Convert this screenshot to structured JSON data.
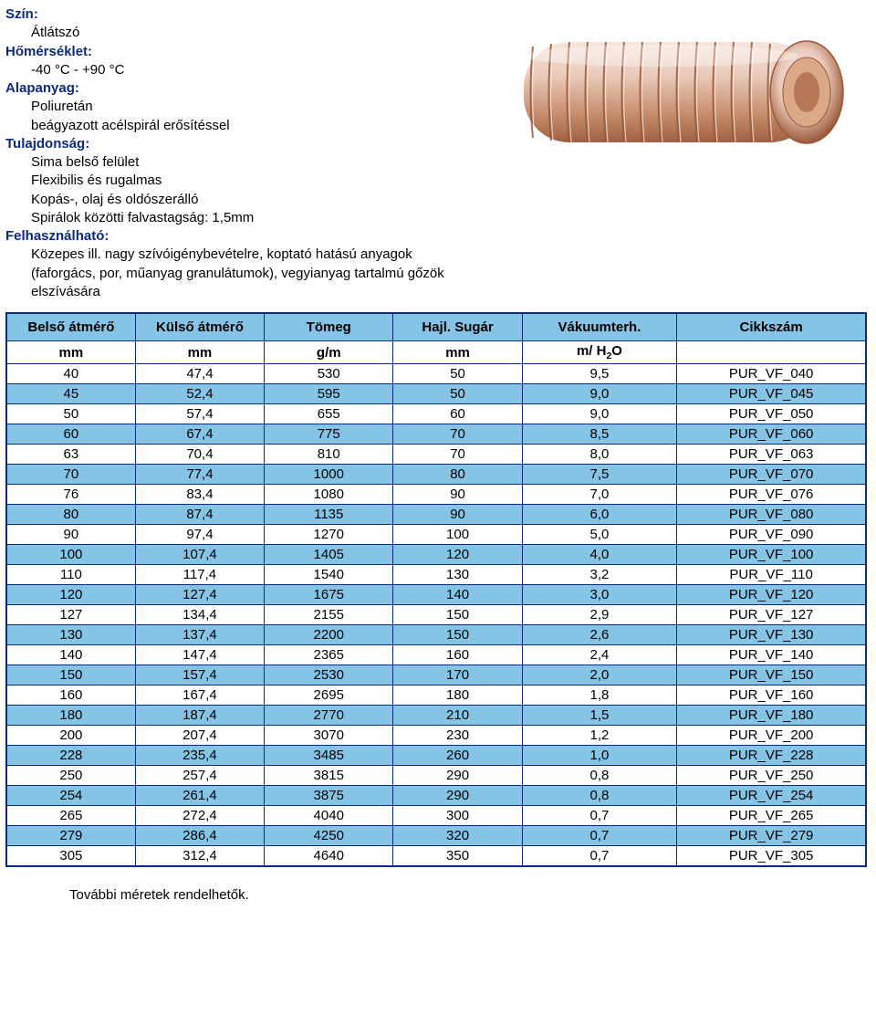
{
  "specs": {
    "color_label": "Szín:",
    "color_value": "Átlátszó",
    "temp_label": "Hőmérséklet:",
    "temp_value": "-40 °C - +90 °C",
    "material_label": "Alapanyag:",
    "material_value_1": "Poliuretán",
    "material_value_2": "beágyazott acélspirál erősítéssel",
    "property_label": "Tulajdonság:",
    "property_value_1": "Sima belső felület",
    "property_value_2": "Flexibilis és rugalmas",
    "property_value_3": "Kopás-, olaj és oldószerálló",
    "property_value_4": "Spirálok közötti falvastagság: 1,5mm",
    "use_label": "Felhasználható:",
    "use_value_1": "Közepes ill. nagy szívóigénybevételre, koptató hatású anyagok",
    "use_value_2": "(faforgács, por, műanyag granulátumok), vegyianyag tartalmú gőzök elszívására"
  },
  "table": {
    "headers": [
      "Belső átmérő",
      "Külső átmérő",
      "Tömeg",
      "Hajl. Sugár",
      "Vákuumterh.",
      "Cikkszám"
    ],
    "units": [
      "mm",
      "mm",
      "g/m",
      "mm",
      "m/ H2O",
      ""
    ],
    "col_widths": [
      "15%",
      "15%",
      "15%",
      "15%",
      "18%",
      "22%"
    ],
    "rows": [
      [
        "40",
        "47,4",
        "530",
        "50",
        "9,5",
        "PUR_VF_040"
      ],
      [
        "45",
        "52,4",
        "595",
        "50",
        "9,0",
        "PUR_VF_045"
      ],
      [
        "50",
        "57,4",
        "655",
        "60",
        "9,0",
        "PUR_VF_050"
      ],
      [
        "60",
        "67,4",
        "775",
        "70",
        "8,5",
        "PUR_VF_060"
      ],
      [
        "63",
        "70,4",
        "810",
        "70",
        "8,0",
        "PUR_VF_063"
      ],
      [
        "70",
        "77,4",
        "1000",
        "80",
        "7,5",
        "PUR_VF_070"
      ],
      [
        "76",
        "83,4",
        "1080",
        "90",
        "7,0",
        "PUR_VF_076"
      ],
      [
        "80",
        "87,4",
        "1135",
        "90",
        "6,0",
        "PUR_VF_080"
      ],
      [
        "90",
        "97,4",
        "1270",
        "100",
        "5,0",
        "PUR_VF_090"
      ],
      [
        "100",
        "107,4",
        "1405",
        "120",
        "4,0",
        "PUR_VF_100"
      ],
      [
        "110",
        "117,4",
        "1540",
        "130",
        "3,2",
        "PUR_VF_110"
      ],
      [
        "120",
        "127,4",
        "1675",
        "140",
        "3,0",
        "PUR_VF_120"
      ],
      [
        "127",
        "134,4",
        "2155",
        "150",
        "2,9",
        "PUR_VF_127"
      ],
      [
        "130",
        "137,4",
        "2200",
        "150",
        "2,6",
        "PUR_VF_130"
      ],
      [
        "140",
        "147,4",
        "2365",
        "160",
        "2,4",
        "PUR_VF_140"
      ],
      [
        "150",
        "157,4",
        "2530",
        "170",
        "2,0",
        "PUR_VF_150"
      ],
      [
        "160",
        "167,4",
        "2695",
        "180",
        "1,8",
        "PUR_VF_160"
      ],
      [
        "180",
        "187,4",
        "2770",
        "210",
        "1,5",
        "PUR_VF_180"
      ],
      [
        "200",
        "207,4",
        "3070",
        "230",
        "1,2",
        "PUR_VF_200"
      ],
      [
        "228",
        "235,4",
        "3485",
        "260",
        "1,0",
        "PUR_VF_228"
      ],
      [
        "250",
        "257,4",
        "3815",
        "290",
        "0,8",
        "PUR_VF_250"
      ],
      [
        "254",
        "261,4",
        "3875",
        "290",
        "0,8",
        "PUR_VF_254"
      ],
      [
        "265",
        "272,4",
        "4040",
        "300",
        "0,7",
        "PUR_VF_265"
      ],
      [
        "279",
        "286,4",
        "4250",
        "320",
        "0,7",
        "PUR_VF_279"
      ],
      [
        "305",
        "312,4",
        "4640",
        "350",
        "0,7",
        "PUR_VF_305"
      ]
    ]
  },
  "footnote": "További méretek rendelhetők.",
  "colors": {
    "header_bg": "#86c4e6",
    "border": "#0a2a7a",
    "label": "#0a2a7a",
    "spiral_light": "#e8c8b8",
    "spiral_dark": "#c89070",
    "spiral_shadow": "#a06040"
  }
}
